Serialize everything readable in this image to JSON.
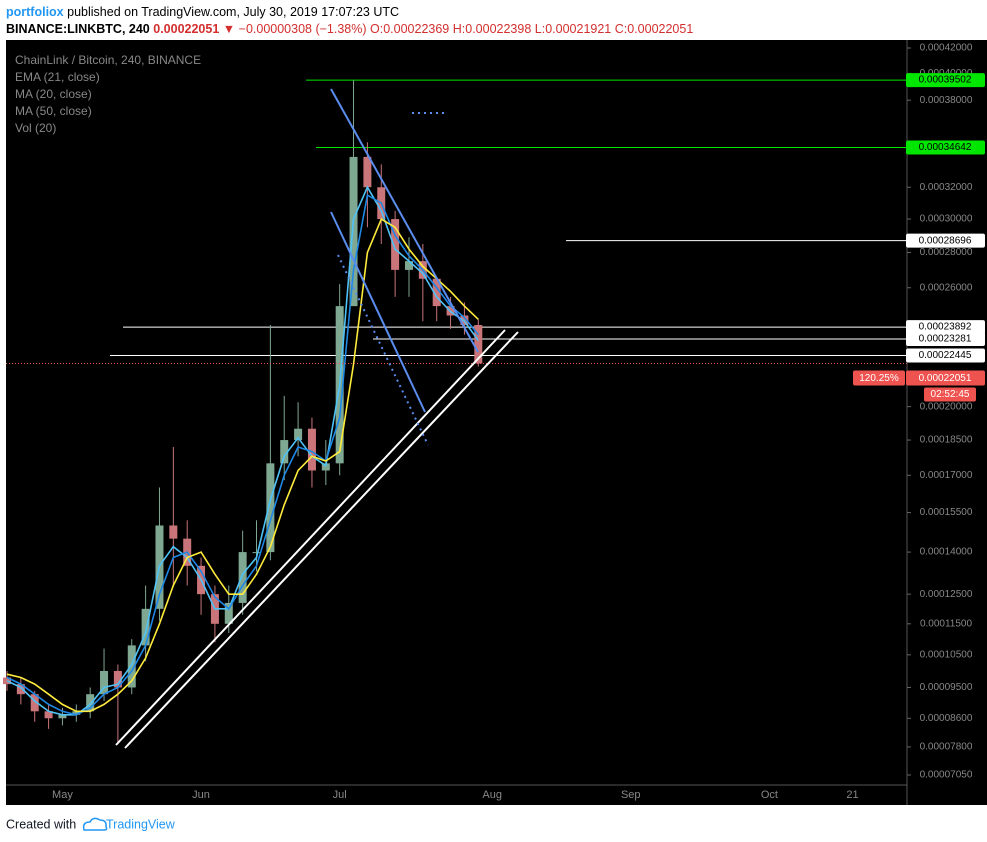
{
  "header": {
    "author": "portfoliox",
    "published": "published on TradingView.com, July 30, 2019 17:07:23 UTC",
    "symbol": "BINANCE:LINKBTC, 240",
    "last": "0.00022051",
    "change": "−0.00000308 (−1.38%)",
    "open": "O:0.00022369",
    "high": "H:0.00022398",
    "low": "L:0.00021921",
    "close": "C:0.00022051"
  },
  "legend": {
    "title": "ChainLink / Bitcoin, 240, BINANCE",
    "volume": "Vol (20)"
  },
  "footer": {
    "created": "Created with",
    "brand": "TradingView"
  },
  "chart_data": {
    "type": "candlestick",
    "categories": [
      null,
      null,
      null,
      null,
      "May",
      null,
      null,
      null,
      null,
      null,
      null,
      null,
      null,
      null,
      "Jun",
      null,
      null,
      null,
      null,
      null,
      null,
      null,
      null,
      null,
      "Jul",
      null,
      null,
      null,
      null,
      null,
      null,
      null,
      null,
      null,
      null,
      "Aug",
      null,
      null,
      null,
      null,
      null,
      null,
      null,
      null,
      null,
      "Sep",
      null,
      null,
      null,
      null,
      null,
      null,
      null,
      null,
      null,
      "Oct",
      null,
      null,
      null,
      null,
      null,
      "21",
      null,
      null,
      null
    ],
    "open": [
      9.8e-05,
      9.6e-05,
      9.3e-05,
      8.8e-05,
      8.6e-05,
      8.7e-05,
      8.8e-05,
      9.3e-05,
      0.0001,
      9.5e-05,
      0.000108,
      0.00012,
      0.00015,
      0.000145,
      0.000135,
      0.000125,
      0.000115,
      0.000122,
      0.00014,
      0.00014,
      0.000175,
      0.000185,
      0.00019,
      0.000172,
      0.000175,
      0.00025,
      0.00034,
      0.00032,
      0.0003,
      0.00027,
      0.000275,
      0.000265,
      0.00025,
      0.000245,
      0.00024,
      null,
      null,
      null,
      null,
      null,
      null,
      null,
      null,
      null,
      null,
      null,
      null,
      null,
      null,
      null,
      null,
      null,
      null,
      null,
      null,
      null,
      null,
      null,
      null,
      null,
      null,
      null,
      null,
      null,
      null
    ],
    "high": [
      0.0001,
      9.8e-05,
      9.4e-05,
      9e-05,
      8.9e-05,
      9e-05,
      9.5e-05,
      0.000107,
      0.000102,
      0.00011,
      0.000128,
      0.000165,
      0.000182,
      0.000152,
      0.000138,
      0.000128,
      0.000128,
      0.000148,
      0.000152,
      0.00024,
      0.000205,
      0.000202,
      0.000195,
      0.000185,
      0.000262,
      0.000395,
      0.00035,
      0.000335,
      0.000305,
      0.000289,
      0.000285,
      0.000262,
      0.000255,
      0.000252,
      0.000243,
      null,
      null,
      null,
      null,
      null,
      null,
      null,
      null,
      null,
      null,
      null,
      null,
      null,
      null,
      null,
      null,
      null,
      null,
      null,
      null,
      null,
      null,
      null,
      null,
      null,
      null,
      null,
      null,
      null,
      null
    ],
    "low": [
      9.4e-05,
      9e-05,
      8.5e-05,
      8.3e-05,
      8.4e-05,
      8.5e-05,
      8.6e-05,
      9.1e-05,
      7.9e-05,
      9.3e-05,
      0.000103,
      0.000116,
      0.000128,
      0.000128,
      0.000118,
      0.000109,
      0.000112,
      0.000118,
      0.000133,
      0.000137,
      0.000168,
      0.000178,
      0.000165,
      0.000166,
      0.00017,
      0.00025,
      0.000295,
      0.000285,
      0.000255,
      0.000255,
      0.000242,
      0.000242,
      0.000238,
      0.000235,
      0.000219,
      null,
      null,
      null,
      null,
      null,
      null,
      null,
      null,
      null,
      null,
      null,
      null,
      null,
      null,
      null,
      null,
      null,
      null,
      null,
      null,
      null,
      null,
      null,
      null,
      null,
      null,
      null,
      null,
      null,
      null
    ],
    "close": [
      9.6e-05,
      9.3e-05,
      8.8e-05,
      8.6e-05,
      8.7e-05,
      8.8e-05,
      9.3e-05,
      0.0001,
      9.5e-05,
      0.000108,
      0.00012,
      0.00015,
      0.000145,
      0.000135,
      0.000125,
      0.000115,
      0.000122,
      0.00014,
      0.00014,
      0.000175,
      0.000185,
      0.00019,
      0.000172,
      0.000175,
      0.00025,
      0.00034,
      0.00032,
      0.0003,
      0.00027,
      0.000275,
      0.000265,
      0.00025,
      0.000245,
      0.00024,
      0.00022051,
      null,
      null,
      null,
      null,
      null,
      null,
      null,
      null,
      null,
      null,
      null,
      null,
      null,
      null,
      null,
      null,
      null,
      null,
      null,
      null,
      null,
      null,
      null,
      null,
      null,
      null,
      null,
      null,
      null,
      null
    ],
    "up_color": "#7fa893",
    "down_color": "#c9757a",
    "series": [
      {
        "name": "EMA (21, close)",
        "color": "#4fc3f7",
        "values": [
          9.7e-05,
          9.5e-05,
          9.1e-05,
          8.8e-05,
          8.7e-05,
          8.7e-05,
          9e-05,
          9.5e-05,
          9.6e-05,
          0.000102,
          0.000112,
          0.000135,
          0.000142,
          0.000138,
          0.00013,
          0.00012,
          0.00012,
          0.000132,
          0.000138,
          0.00016,
          0.000178,
          0.000186,
          0.000178,
          0.000174,
          0.00021,
          0.0003,
          0.00032,
          0.000305,
          0.000282,
          0.000275,
          0.000268,
          0.000255,
          0.000247,
          0.000242,
          0.000232,
          null,
          null,
          null,
          null,
          null,
          null,
          null,
          null,
          null,
          null,
          null,
          null,
          null,
          null,
          null,
          null,
          null,
          null,
          null,
          null,
          null,
          null,
          null,
          null,
          null,
          null,
          null,
          null,
          null,
          null
        ]
      },
      {
        "name": "MA (20, close)",
        "color": "#1e88e5",
        "values": [
          9.8e-05,
          9.6e-05,
          9.3e-05,
          9e-05,
          8.8e-05,
          8.7e-05,
          8.9e-05,
          9.3e-05,
          9.5e-05,
          0.0001,
          0.000108,
          0.000125,
          0.000138,
          0.00014,
          0.000133,
          0.000124,
          0.00012,
          0.000128,
          0.000135,
          0.000152,
          0.00017,
          0.000182,
          0.00018,
          0.000176,
          0.000195,
          0.00027,
          0.000315,
          0.00031,
          0.00029,
          0.000278,
          0.00027,
          0.00026,
          0.00025,
          0.000244,
          0.000235,
          null,
          null,
          null,
          null,
          null,
          null,
          null,
          null,
          null,
          null,
          null,
          null,
          null,
          null,
          null,
          null,
          null,
          null,
          null,
          null,
          null,
          null,
          null,
          null,
          null,
          null,
          null,
          null,
          null,
          null
        ]
      },
      {
        "name": "MA (50, close)",
        "color": "#ffeb3b",
        "values": [
          9.9e-05,
          9.8e-05,
          9.6e-05,
          9.3e-05,
          9e-05,
          8.8e-05,
          8.8e-05,
          9e-05,
          9.3e-05,
          9.7e-05,
          0.000104,
          0.000115,
          0.000128,
          0.000138,
          0.00014,
          0.000132,
          0.000125,
          0.000125,
          0.000132,
          0.000142,
          0.000158,
          0.000172,
          0.000178,
          0.000176,
          0.00018,
          0.00022,
          0.00028,
          0.0003,
          0.000295,
          0.000282,
          0.000272,
          0.000265,
          0.000258,
          0.00025,
          0.000243,
          null,
          null,
          null,
          null,
          null,
          null,
          null,
          null,
          null,
          null,
          null,
          null,
          null,
          null,
          null,
          null,
          null,
          null,
          null,
          null,
          null,
          null,
          null,
          null,
          null,
          null,
          null,
          null,
          null,
          null
        ]
      }
    ],
    "log_scale": true,
    "grid": false,
    "ylim": [
      7.05e-05,
      0.00042
    ],
    "yticks": [
      {
        "value": 0.00042,
        "label": "0.00042000"
      },
      {
        "value": 0.0004,
        "label": "0.00040000"
      },
      {
        "value": 0.00038,
        "label": "0.00038000"
      },
      {
        "value": 0.00032,
        "label": "0.00032000"
      },
      {
        "value": 0.0003,
        "label": "0.00030000"
      },
      {
        "value": 0.00028,
        "label": "0.00028000"
      },
      {
        "value": 0.00026,
        "label": "0.00026000"
      },
      {
        "value": 0.0002,
        "label": "0.00020000"
      },
      {
        "value": 0.000185,
        "label": "0.00018500"
      },
      {
        "value": 0.00017,
        "label": "0.00017000"
      },
      {
        "value": 0.000155,
        "label": "0.00015500"
      },
      {
        "value": 0.00014,
        "label": "0.00014000"
      },
      {
        "value": 0.000125,
        "label": "0.00012500"
      },
      {
        "value": 0.000115,
        "label": "0.00011500"
      },
      {
        "value": 0.000105,
        "label": "0.00010500"
      },
      {
        "value": 9.5e-05,
        "label": "0.00009500"
      },
      {
        "value": 8.6e-05,
        "label": "0.00008600"
      },
      {
        "value": 7.8e-05,
        "label": "0.00007800"
      },
      {
        "value": 7.05e-05,
        "label": "0.00007050"
      }
    ],
    "price_levels": [
      {
        "value": 0.00039502,
        "color": "#00e600"
      },
      {
        "value": 0.00034642,
        "color": "#00e600"
      },
      {
        "value": 0.00028696,
        "color": "#ffffff"
      },
      {
        "value": 0.00023892,
        "color": "#ffffff"
      },
      {
        "value": 0.00023281,
        "color": "#ffffff"
      },
      {
        "value": 0.00022445,
        "color": "#ffffff"
      }
    ],
    "current_price": {
      "value": 0.00022051,
      "color": "#ef5350",
      "change_label": "120.25%",
      "countdown": "02:52:45"
    }
  }
}
